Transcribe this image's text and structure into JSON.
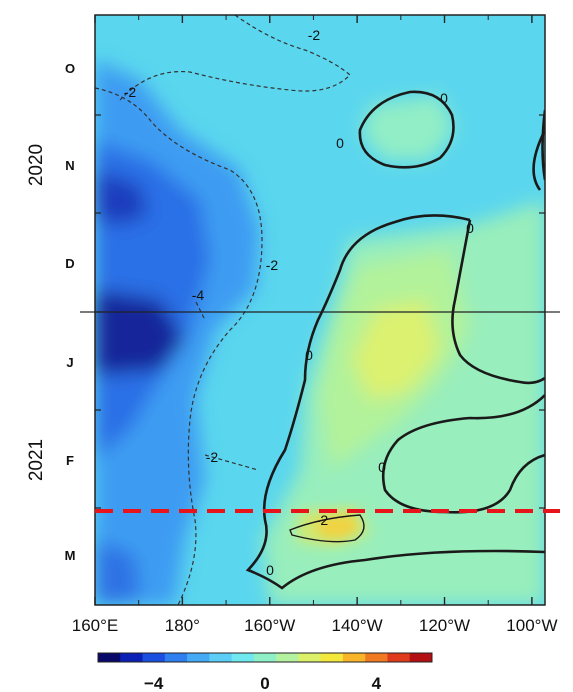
{
  "chart_data": {
    "type": "heatmap",
    "title": "",
    "x_tick_labels": [
      "160°E",
      "180°",
      "160°W",
      "140°W",
      "120°W",
      "100°W"
    ],
    "x_tick_lon": [
      160,
      180,
      200,
      220,
      240,
      260
    ],
    "xlim_lon": [
      160,
      263
    ],
    "month_labels": [
      "O",
      "N",
      "D",
      "J",
      "F",
      "M"
    ],
    "year_labels": [
      "2020",
      "2021"
    ],
    "colorbar": {
      "range": [
        -6,
        6
      ],
      "tick_labels": [
        "−4",
        "0",
        "4"
      ],
      "tick_values": [
        -4,
        0,
        4
      ],
      "colors": [
        "#08086b",
        "#0b20b5",
        "#1a4fe0",
        "#2f7ff0",
        "#45aaf5",
        "#5ccdf6",
        "#6fe8f0",
        "#8ff0c8",
        "#b5f2a0",
        "#dcf06a",
        "#f5e83c",
        "#f8b52a",
        "#f07a22",
        "#e03a1c",
        "#b40f12"
      ]
    },
    "contour_labels": [
      "0",
      "0",
      "0",
      "0",
      "0",
      "0",
      "-2",
      "-2",
      "-2",
      "-2",
      "-4"
    ],
    "reference_line": {
      "style": "dashed",
      "color": "#e8141c"
    }
  }
}
